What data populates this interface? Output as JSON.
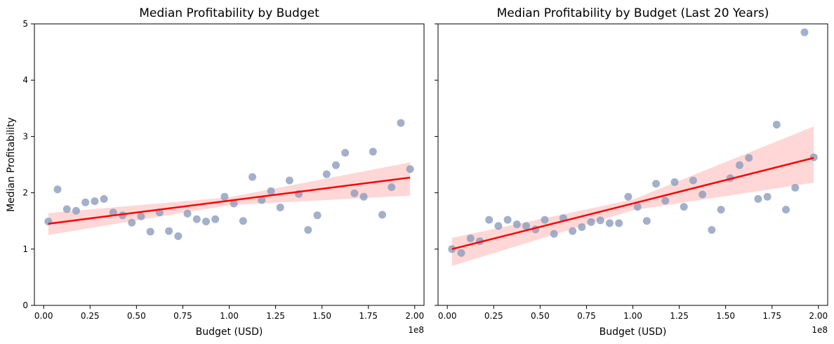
{
  "chart_data": [
    {
      "type": "scatter",
      "title": "Median Profitability by Budget",
      "xlabel": "Budget (USD)",
      "ylabel": "Median Profitability",
      "x_offset_label": "1e8",
      "x_unit_scale": 100000000,
      "xlim": [
        -0.05,
        2.05
      ],
      "ylim": [
        0,
        5
      ],
      "xticks": [
        0.0,
        0.25,
        0.5,
        0.75,
        1.0,
        1.25,
        1.5,
        1.75,
        2.0
      ],
      "xtick_labels": [
        "0.00",
        "0.25",
        "0.50",
        "0.75",
        "1.00",
        "1.25",
        "1.50",
        "1.75",
        "2.00"
      ],
      "yticks": [
        0,
        1,
        2,
        3,
        4,
        5
      ],
      "ytick_labels": [
        "0",
        "1",
        "2",
        "3",
        "4",
        "5"
      ],
      "point_color": "#8c9cbd",
      "fit_color": "#ff0000",
      "band_color": "#ffb0b0",
      "points": {
        "x": [
          0.025,
          0.075,
          0.125,
          0.175,
          0.225,
          0.275,
          0.325,
          0.375,
          0.425,
          0.475,
          0.525,
          0.575,
          0.625,
          0.675,
          0.725,
          0.775,
          0.825,
          0.875,
          0.925,
          0.975,
          1.025,
          1.075,
          1.125,
          1.175,
          1.225,
          1.275,
          1.325,
          1.375,
          1.425,
          1.475,
          1.525,
          1.575,
          1.625,
          1.675,
          1.725,
          1.775,
          1.825,
          1.875,
          1.925,
          1.975
        ],
        "y": [
          1.49,
          2.06,
          1.71,
          1.68,
          1.83,
          1.85,
          1.89,
          1.65,
          1.6,
          1.47,
          1.58,
          1.31,
          1.65,
          1.32,
          1.23,
          1.63,
          1.53,
          1.49,
          1.53,
          1.93,
          1.81,
          1.5,
          2.28,
          1.87,
          2.03,
          1.74,
          2.22,
          1.98,
          1.34,
          1.6,
          2.33,
          2.49,
          2.71,
          1.99,
          1.93,
          2.73,
          1.61,
          2.1,
          3.24,
          2.42
        ]
      },
      "fit_line": {
        "x": [
          0.025,
          1.975
        ],
        "y": [
          1.45,
          2.27
        ]
      },
      "confidence_band": {
        "x": [
          0.025,
          1.0,
          1.975
        ],
        "lower": [
          1.25,
          1.78,
          1.95
        ],
        "upper": [
          1.64,
          1.92,
          2.54
        ]
      }
    },
    {
      "type": "scatter",
      "title": "Median Profitability by Budget (Last 20 Years)",
      "xlabel": "Budget (USD)",
      "ylabel": "",
      "x_offset_label": "1e8",
      "x_unit_scale": 100000000,
      "xlim": [
        -0.05,
        2.05
      ],
      "ylim": [
        0,
        5
      ],
      "xticks": [
        0.0,
        0.25,
        0.5,
        0.75,
        1.0,
        1.25,
        1.5,
        1.75,
        2.0
      ],
      "xtick_labels": [
        "0.00",
        "0.25",
        "0.50",
        "0.75",
        "1.00",
        "1.25",
        "1.50",
        "1.75",
        "2.00"
      ],
      "yticks": [
        0,
        1,
        2,
        3,
        4,
        5
      ],
      "shared_y": true,
      "point_color": "#8c9cbd",
      "fit_color": "#ff0000",
      "band_color": "#ffb0b0",
      "points": {
        "x": [
          0.025,
          0.075,
          0.125,
          0.175,
          0.225,
          0.275,
          0.325,
          0.375,
          0.425,
          0.475,
          0.525,
          0.575,
          0.625,
          0.675,
          0.725,
          0.775,
          0.825,
          0.875,
          0.925,
          0.975,
          1.025,
          1.075,
          1.125,
          1.175,
          1.225,
          1.275,
          1.325,
          1.375,
          1.425,
          1.475,
          1.525,
          1.575,
          1.625,
          1.675,
          1.725,
          1.775,
          1.825,
          1.875,
          1.925,
          1.975
        ],
        "y": [
          1.0,
          0.93,
          1.19,
          1.14,
          1.52,
          1.41,
          1.52,
          1.44,
          1.41,
          1.35,
          1.52,
          1.27,
          1.55,
          1.32,
          1.39,
          1.48,
          1.51,
          1.46,
          1.46,
          1.93,
          1.75,
          1.5,
          2.16,
          1.86,
          2.19,
          1.75,
          2.22,
          1.97,
          1.34,
          1.7,
          2.26,
          2.49,
          2.62,
          1.89,
          1.93,
          3.21,
          1.7,
          2.09,
          4.85,
          2.63
        ]
      },
      "fit_line": {
        "x": [
          0.025,
          1.975
        ],
        "y": [
          1.0,
          2.62
        ]
      },
      "confidence_band": {
        "x": [
          0.025,
          1.0,
          1.975
        ],
        "lower": [
          0.7,
          1.69,
          2.18
        ],
        "upper": [
          1.2,
          1.88,
          3.18
        ]
      }
    }
  ]
}
